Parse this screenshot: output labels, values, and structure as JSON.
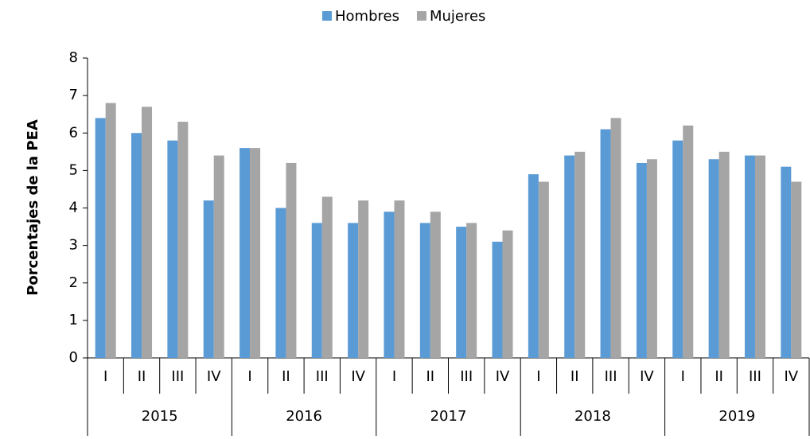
{
  "chart_data": {
    "type": "bar",
    "y_label": "Porcentajes de la PEA",
    "categories": [
      "I",
      "II",
      "III",
      "IV",
      "I",
      "II",
      "III",
      "IV",
      "I",
      "II",
      "III",
      "IV",
      "I",
      "II",
      "III",
      "IV",
      "I",
      "II",
      "III",
      "IV"
    ],
    "category_groups": [
      "2015",
      "2016",
      "2017",
      "2018",
      "2019"
    ],
    "series": [
      {
        "name": "Hombres",
        "color": "#5b9bd5",
        "values": [
          6.4,
          6.0,
          5.8,
          4.2,
          5.6,
          4.0,
          3.6,
          3.6,
          3.9,
          3.6,
          3.5,
          3.1,
          4.9,
          5.4,
          6.1,
          5.2,
          5.8,
          5.3,
          5.4,
          5.1
        ]
      },
      {
        "name": "Mujeres",
        "color": "#a5a5a5",
        "values": [
          6.8,
          6.7,
          6.3,
          5.4,
          5.6,
          5.2,
          4.3,
          4.2,
          4.2,
          3.9,
          3.6,
          3.4,
          4.7,
          5.5,
          6.4,
          5.3,
          6.2,
          5.5,
          5.4,
          4.7
        ]
      }
    ],
    "ylim": [
      0,
      8
    ],
    "yticks": [
      0,
      1,
      2,
      3,
      4,
      5,
      6,
      7,
      8
    ],
    "legend": "top",
    "grid": false
  }
}
